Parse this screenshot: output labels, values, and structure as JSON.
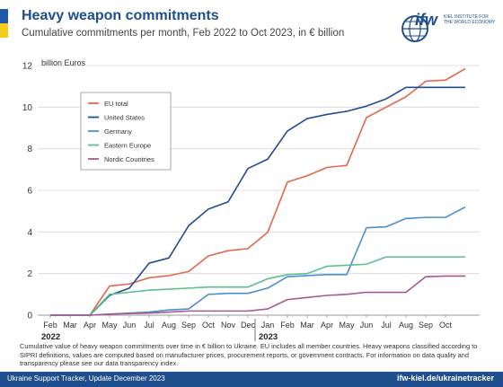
{
  "header": {
    "title": "Heavy weapon commitments",
    "subtitle": "Cumulative commitments per month, Feb 2022 to Oct 2023, in € billion"
  },
  "logo": {
    "name": "ifw",
    "line1": "KIEL INSTITUTE FOR",
    "line2": "THE WORLD ECONOMY"
  },
  "caption": "Cumulative value of heavy weapon commitments over time in € billion to Ukraine. EU includes all member countries. Heavy weapons classified according to SIPRI definitions, values are computed based on manufacturer prices, procurement reports, or government contracts. For information on data quality and transparency please see our data transparency index.",
  "footer": {
    "left": "Ukraine Support Tracker, Update December 2023",
    "right": "ifw-kiel.de/ukrainetracker"
  },
  "colors": {
    "brand_blue": "#1e4e8c",
    "flag_blue": "#1f5aa6",
    "flag_yellow": "#f5cc1a"
  },
  "chart_data": {
    "type": "line",
    "ylabel": "billion Euros",
    "ylim": [
      0,
      12
    ],
    "yticks": [
      0,
      2,
      4,
      6,
      8,
      10,
      12
    ],
    "grid": "horizontal",
    "legend_position": "top-left",
    "categories": [
      "Feb",
      "Mar",
      "Apr",
      "May",
      "Jun",
      "Jul",
      "Aug",
      "Sep",
      "Oct",
      "Nov",
      "Dec",
      "Jan",
      "Feb",
      "Mar",
      "Apr",
      "May",
      "Jun",
      "Jul",
      "Aug",
      "Sep",
      "Oct"
    ],
    "year_labels": [
      {
        "label": "2022",
        "at_index": 0
      },
      {
        "label": "2023",
        "at_index": 11
      }
    ],
    "series": [
      {
        "name": "EU total",
        "color": "#e2674a",
        "values": [
          0,
          0,
          0,
          1.4,
          1.5,
          1.8,
          1.9,
          2.1,
          2.85,
          3.1,
          3.2,
          3.98,
          6.4,
          6.7,
          7.1,
          7.2,
          9.5,
          10.0,
          10.5,
          11.25,
          11.3
        ]
      },
      {
        "name": "United States",
        "color": "#1f4e94",
        "values": [
          0,
          0,
          0,
          0.95,
          1.3,
          2.5,
          2.75,
          4.3,
          5.1,
          5.45,
          7.05,
          7.5,
          8.85,
          9.45,
          9.65,
          9.8,
          10.05,
          10.4,
          10.95,
          10.95,
          10.95
        ]
      },
      {
        "name": "Germany",
        "color": "#4a8fcf",
        "values": [
          0,
          0,
          0,
          0.05,
          0.1,
          0.15,
          0.25,
          0.3,
          1.0,
          1.05,
          1.05,
          1.3,
          1.85,
          1.9,
          1.95,
          1.95,
          4.2,
          4.25,
          4.65,
          4.7,
          4.7
        ]
      },
      {
        "name": "Eastern Europe",
        "color": "#5cc08c",
        "values": [
          0,
          0,
          0,
          1.0,
          1.1,
          1.2,
          1.25,
          1.3,
          1.35,
          1.35,
          1.35,
          1.75,
          1.95,
          2.0,
          2.35,
          2.4,
          2.45,
          2.8,
          2.8,
          2.8,
          2.8
        ]
      },
      {
        "name": "Nordic Countries",
        "color": "#a8578f",
        "values": [
          0,
          0,
          0,
          0.05,
          0.08,
          0.1,
          0.15,
          0.2,
          0.2,
          0.2,
          0.2,
          0.3,
          0.75,
          0.85,
          0.95,
          1.0,
          1.1,
          1.1,
          1.1,
          1.85,
          1.88
        ]
      }
    ],
    "extra_points": [
      {
        "series": "EU total",
        "x_after": "Oct",
        "value": 11.85
      },
      {
        "series": "Germany",
        "x_after": "Oct",
        "value": 5.2
      }
    ]
  }
}
